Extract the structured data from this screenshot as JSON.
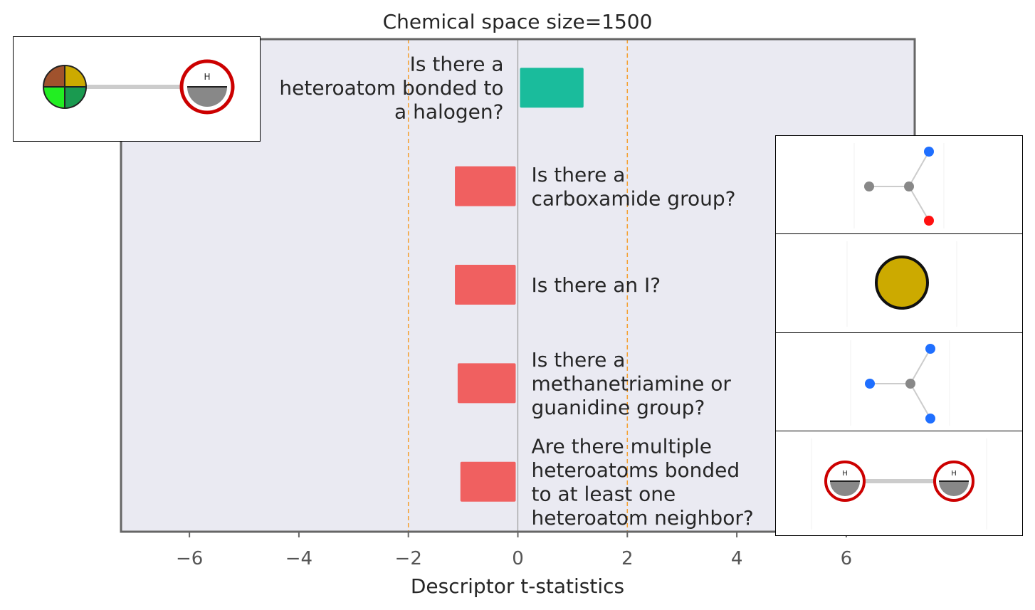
{
  "chart_data": {
    "type": "bar",
    "orientation": "horizontal",
    "title": "Chemical space size=1500",
    "xlabel": "Descriptor t-statistics",
    "ylabel": "",
    "xlim": [
      -7.25,
      7.25
    ],
    "x_ticks": [
      -6,
      -4,
      -2,
      0,
      2,
      4,
      6
    ],
    "x_tick_labels": [
      "−6",
      "−4",
      "−2",
      "0",
      "2",
      "4",
      "6"
    ],
    "significance_lines": [
      -2,
      2
    ],
    "grid": false,
    "categories": [
      [
        "Is there a",
        "heteroatom bonded to",
        "a halogen?"
      ],
      [
        "Is there a",
        "carboxamide group?"
      ],
      [
        "Is there an I?"
      ],
      [
        "Is there a",
        "methanetriamine or",
        "guanidine group?"
      ],
      [
        "Are there multiple",
        "heteroatoms bonded",
        "to at least one",
        "heteroatom neighbor?"
      ]
    ],
    "values": [
      1.2,
      -1.15,
      -1.15,
      -1.1,
      -1.05
    ],
    "colors": {
      "positive": "#1abc9c",
      "negative": "#f06060",
      "background": "#eaeaf2",
      "threshold": "#f5a030",
      "zero_line": "#999999"
    }
  },
  "insets": [
    {
      "name": "heteroatom-halogen-structure-icon",
      "atoms": [
        "H"
      ]
    },
    {
      "name": "carboxamide-structure-icon",
      "atoms": []
    },
    {
      "name": "iodine-atom-icon",
      "atoms": []
    },
    {
      "name": "guanidine-structure-icon",
      "atoms": []
    },
    {
      "name": "heteroatom-pair-structure-icon",
      "atoms": [
        "H",
        "H"
      ]
    }
  ]
}
